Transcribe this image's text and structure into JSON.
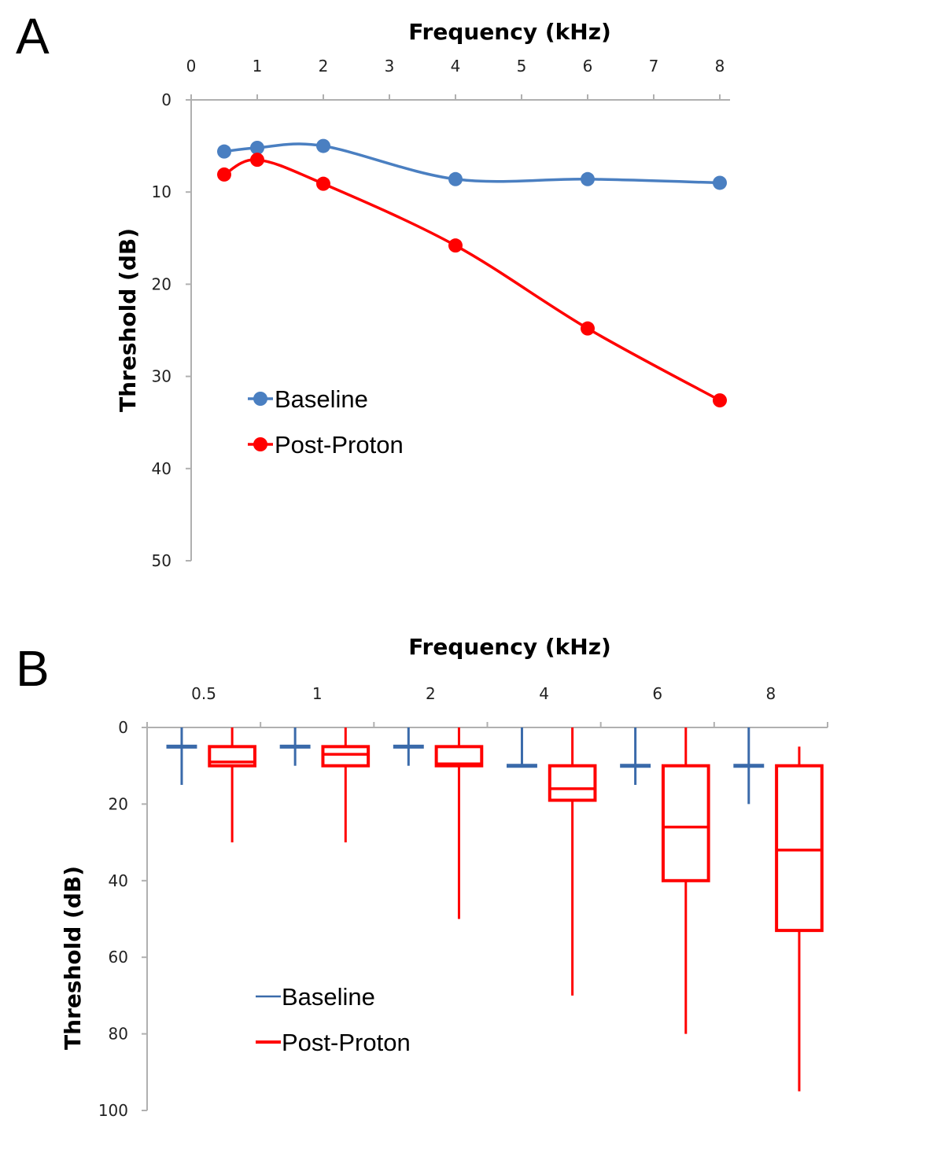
{
  "panels": {
    "a_label": "A",
    "b_label": "B"
  },
  "chart_data": [
    {
      "type": "line",
      "panel": "A",
      "title": "",
      "xlabel": "Frequency (kHz)",
      "ylabel": "Threshold (dB)",
      "xlim": [
        0,
        8
      ],
      "ylim": [
        0,
        50
      ],
      "y_inverted": true,
      "x_axis_position": "top",
      "x_ticks": [
        "0",
        "1",
        "2",
        "3",
        "4",
        "5",
        "6",
        "7",
        "8"
      ],
      "y_ticks": [
        "0",
        "10",
        "20",
        "30",
        "40",
        "50"
      ],
      "grid": false,
      "smooth": true,
      "legend_position": "lower-left",
      "x": [
        0.5,
        1,
        2,
        4,
        6,
        8
      ],
      "series": [
        {
          "name": "Baseline",
          "color": "#4a7fc1",
          "values": [
            5.6,
            5.2,
            5.0,
            8.6,
            8.6,
            9.0
          ]
        },
        {
          "name": "Post-Proton",
          "color": "#ff0000",
          "values": [
            8.1,
            6.5,
            9.1,
            15.8,
            24.8,
            32.6
          ]
        }
      ]
    },
    {
      "type": "box",
      "panel": "B",
      "title": "",
      "xlabel": "Frequency (kHz)",
      "ylabel": "Threshold (dB)",
      "ylim": [
        0,
        100
      ],
      "y_inverted": true,
      "x_axis_position": "top",
      "categories": [
        "0.5",
        "1",
        "2",
        "4",
        "6",
        "8"
      ],
      "y_ticks": [
        "0",
        "20",
        "40",
        "60",
        "80",
        "100"
      ],
      "grid": false,
      "legend_position": "lower-left",
      "series": [
        {
          "name": "Baseline",
          "color": "#3a6aaa",
          "boxes": [
            {
              "min": 0,
              "q1": 5,
              "median": 5,
              "q3": 5,
              "max": 15
            },
            {
              "min": 0,
              "q1": 5,
              "median": 5,
              "q3": 5,
              "max": 10
            },
            {
              "min": 0,
              "q1": 5,
              "median": 5,
              "q3": 5,
              "max": 10
            },
            {
              "min": 0,
              "q1": 10,
              "median": 10,
              "q3": 10,
              "max": 10
            },
            {
              "min": 0,
              "q1": 10,
              "median": 10,
              "q3": 10,
              "max": 15
            },
            {
              "min": 0,
              "q1": 10,
              "median": 10,
              "q3": 10,
              "max": 20
            }
          ]
        },
        {
          "name": "Post-Proton",
          "color": "#ff0000",
          "boxes": [
            {
              "min": 0,
              "q1": 5,
              "median": 9,
              "q3": 10,
              "max": 30
            },
            {
              "min": 0,
              "q1": 5,
              "median": 7,
              "q3": 10,
              "max": 30
            },
            {
              "min": 0,
              "q1": 5,
              "median": 9.5,
              "q3": 10,
              "max": 50
            },
            {
              "min": 0,
              "q1": 10,
              "median": 16,
              "q3": 19,
              "max": 70
            },
            {
              "min": 0,
              "q1": 10,
              "median": 26,
              "q3": 40,
              "max": 80
            },
            {
              "min": 5,
              "q1": 10,
              "median": 32,
              "q3": 53,
              "max": 95
            }
          ]
        }
      ]
    }
  ]
}
